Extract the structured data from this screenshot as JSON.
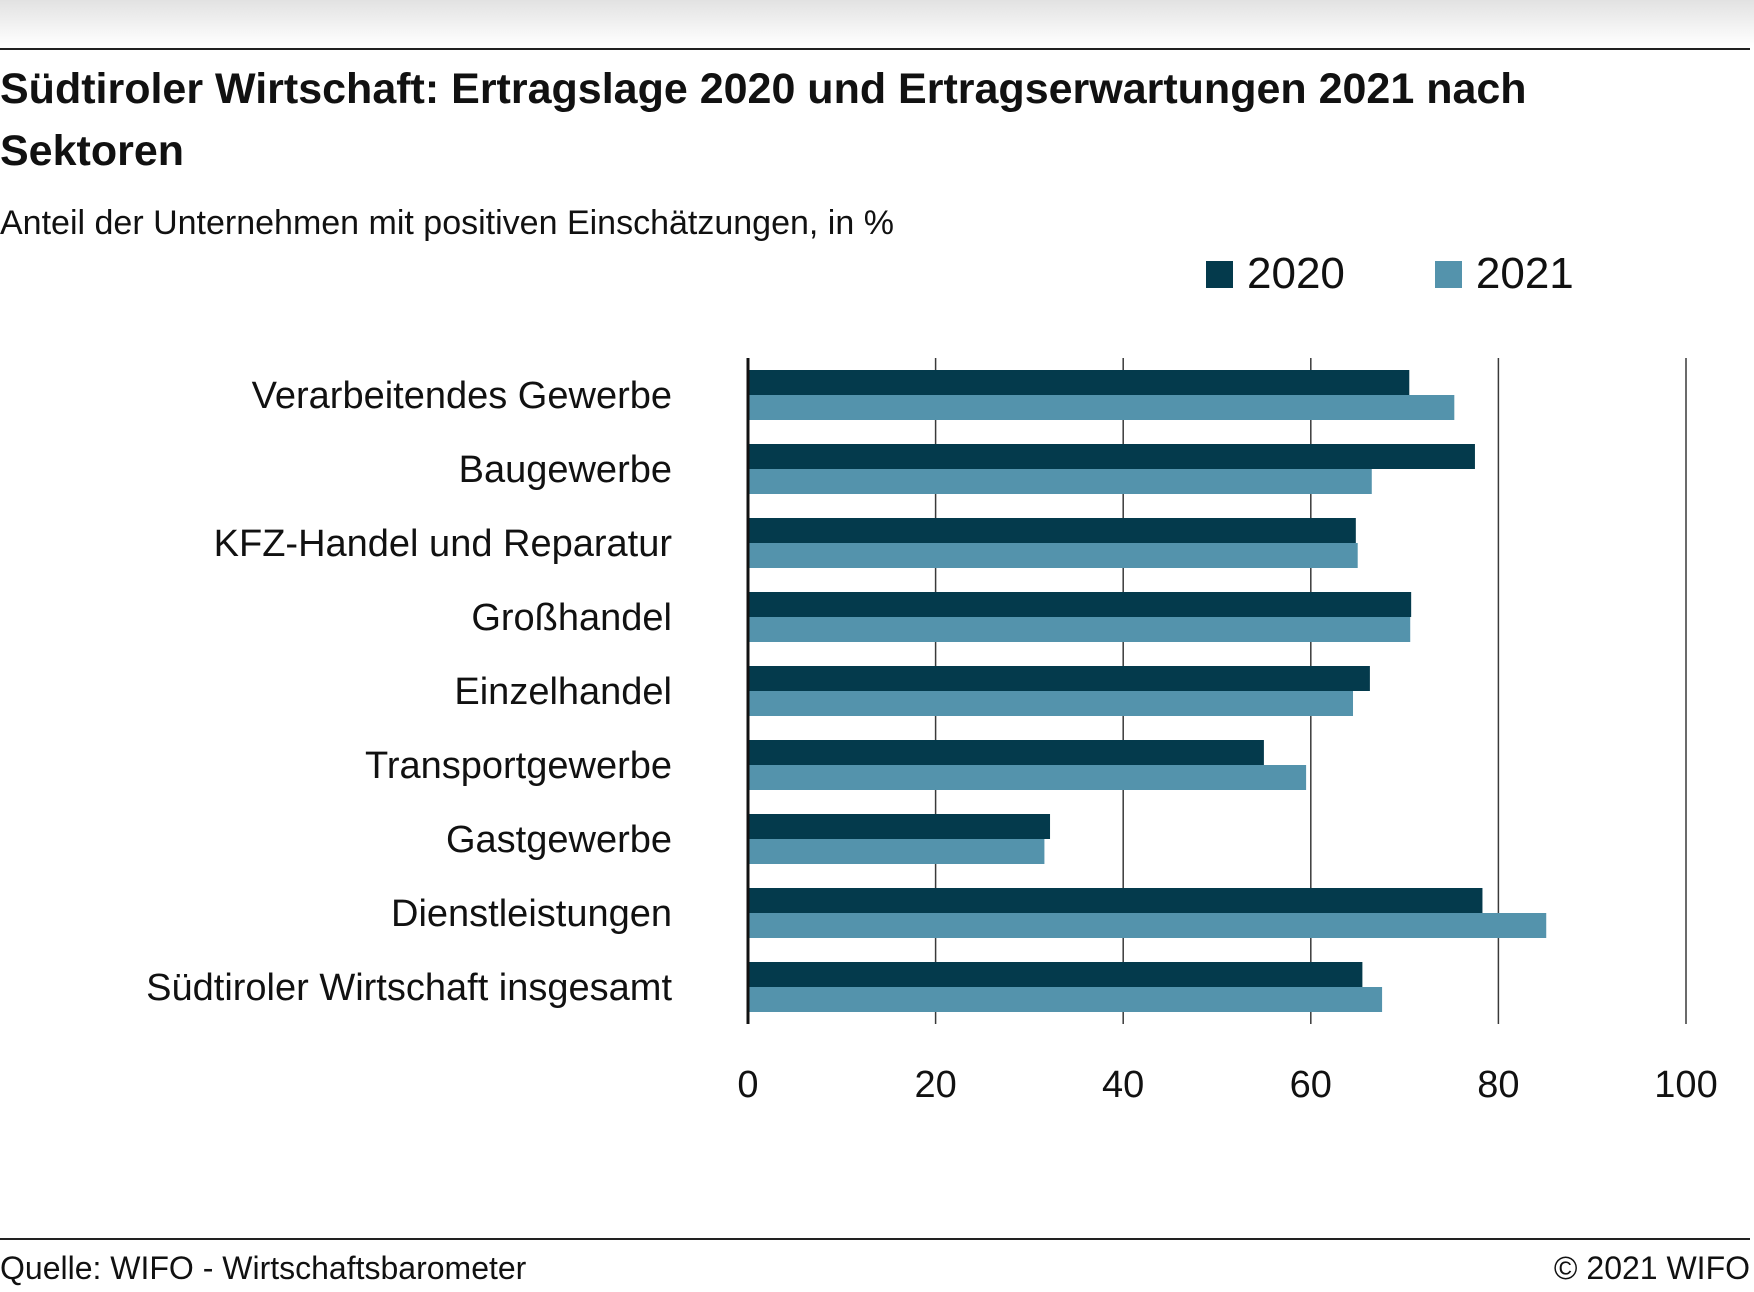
{
  "chart_data": {
    "type": "bar",
    "orientation": "horizontal",
    "title": "Südtiroler Wirtschaft: Ertragslage 2020 und Ertragserwartungen 2021 nach Sektoren",
    "subtitle": "Anteil der Unternehmen mit positiven Einschätzungen, in %",
    "categories": [
      "Verarbeitendes Gewerbe",
      "Baugewerbe",
      "KFZ-Handel und Reparatur",
      "Großhandel",
      "Einzelhandel",
      "Transportgewerbe",
      "Gastgewerbe",
      "Dienstleistungen",
      "Südtiroler Wirtschaft insgesamt"
    ],
    "series": [
      {
        "name": "2020",
        "color": "#043a4c",
        "values": [
          70.5,
          77.5,
          64.8,
          70.7,
          66.3,
          55.0,
          32.2,
          78.3,
          65.5
        ]
      },
      {
        "name": "2021",
        "color": "#5493ac",
        "values": [
          75.3,
          66.5,
          65.0,
          70.6,
          64.5,
          59.5,
          31.6,
          85.1,
          67.6
        ]
      }
    ],
    "xlim": [
      0,
      100
    ],
    "xticks": [
      "0",
      "20",
      "40",
      "60",
      "80",
      "100"
    ],
    "grid": true,
    "legend_position": "top-right"
  },
  "footer": {
    "source": "Quelle: WIFO - Wirtschaftsbarometer",
    "copyright": "© 2021 WIFO"
  }
}
